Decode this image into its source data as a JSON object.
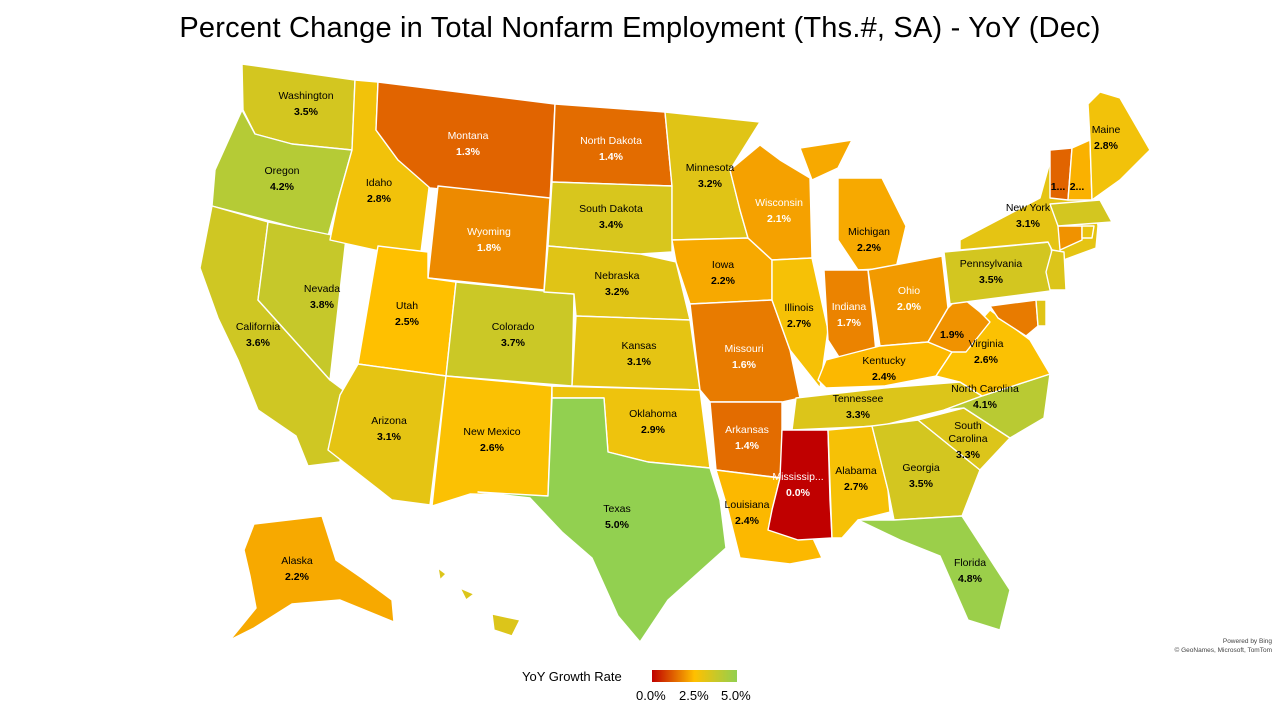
{
  "title": "Percent Change in Total Nonfarm Employment (Ths.#, SA) - YoY (Dec)",
  "credit": [
    "Powered by Bing",
    "© GeoNames, Microsoft, TomTom"
  ],
  "legend": {
    "title": "YoY Growth Rate",
    "ticks": [
      "0.0%",
      "2.5%",
      "5.0%"
    ],
    "color_low": "#c00000",
    "color_mid": "#ffc000",
    "color_high": "#92d050"
  },
  "states": [
    {
      "id": "WA",
      "name": "Washington",
      "value": "3.5%",
      "v": 3.5
    },
    {
      "id": "OR",
      "name": "Oregon",
      "value": "4.2%",
      "v": 4.2
    },
    {
      "id": "CA",
      "name": "California",
      "value": "3.6%",
      "v": 3.6
    },
    {
      "id": "NV",
      "name": "Nevada",
      "value": "3.8%",
      "v": 3.8
    },
    {
      "id": "ID",
      "name": "Idaho",
      "value": "2.8%",
      "v": 2.8
    },
    {
      "id": "MT",
      "name": "Montana",
      "value": "1.3%",
      "v": 1.3
    },
    {
      "id": "WY",
      "name": "Wyoming",
      "value": "1.8%",
      "v": 1.8
    },
    {
      "id": "UT",
      "name": "Utah",
      "value": "2.5%",
      "v": 2.5
    },
    {
      "id": "AZ",
      "name": "Arizona",
      "value": "3.1%",
      "v": 3.1
    },
    {
      "id": "CO",
      "name": "Colorado",
      "value": "3.7%",
      "v": 3.7
    },
    {
      "id": "NM",
      "name": "New Mexico",
      "value": "2.6%",
      "v": 2.6
    },
    {
      "id": "ND",
      "name": "North Dakota",
      "value": "1.4%",
      "v": 1.4
    },
    {
      "id": "SD",
      "name": "South Dakota",
      "value": "3.4%",
      "v": 3.4
    },
    {
      "id": "NE",
      "name": "Nebraska",
      "value": "3.2%",
      "v": 3.2
    },
    {
      "id": "KS",
      "name": "Kansas",
      "value": "3.1%",
      "v": 3.1
    },
    {
      "id": "OK",
      "name": "Oklahoma",
      "value": "2.9%",
      "v": 2.9
    },
    {
      "id": "TX",
      "name": "Texas",
      "value": "5.0%",
      "v": 5.0
    },
    {
      "id": "MN",
      "name": "Minnesota",
      "value": "3.2%",
      "v": 3.2
    },
    {
      "id": "IA",
      "name": "Iowa",
      "value": "2.2%",
      "v": 2.2
    },
    {
      "id": "MO",
      "name": "Missouri",
      "value": "1.6%",
      "v": 1.6
    },
    {
      "id": "AR",
      "name": "Arkansas",
      "value": "1.4%",
      "v": 1.4
    },
    {
      "id": "LA",
      "name": "Louisiana",
      "value": "2.4%",
      "v": 2.4
    },
    {
      "id": "WI",
      "name": "Wisconsin",
      "value": "2.1%",
      "v": 2.1
    },
    {
      "id": "IL",
      "name": "Illinois",
      "value": "2.7%",
      "v": 2.7
    },
    {
      "id": "MI",
      "name": "Michigan",
      "value": "2.2%",
      "v": 2.2
    },
    {
      "id": "IN",
      "name": "Indiana",
      "value": "1.7%",
      "v": 1.7
    },
    {
      "id": "OH",
      "name": "Ohio",
      "value": "2.0%",
      "v": 2.0
    },
    {
      "id": "KY",
      "name": "Kentucky",
      "value": "2.4%",
      "v": 2.4
    },
    {
      "id": "TN",
      "name": "Tennessee",
      "value": "3.3%",
      "v": 3.3
    },
    {
      "id": "MS",
      "name": "Mississip...",
      "value": "0.0%",
      "v": 0.0
    },
    {
      "id": "AL",
      "name": "Alabama",
      "value": "2.7%",
      "v": 2.7
    },
    {
      "id": "GA",
      "name": "Georgia",
      "value": "3.5%",
      "v": 3.5
    },
    {
      "id": "FL",
      "name": "Florida",
      "value": "4.8%",
      "v": 4.8
    },
    {
      "id": "SC",
      "name": "South Carolina",
      "value": "3.3%",
      "v": 3.3
    },
    {
      "id": "NC",
      "name": "North Carolina",
      "value": "4.1%",
      "v": 4.1
    },
    {
      "id": "VA",
      "name": "Virginia",
      "value": "2.6%",
      "v": 2.6
    },
    {
      "id": "WV",
      "name": "",
      "value": "1.9%",
      "v": 1.9
    },
    {
      "id": "PA",
      "name": "Pennsylvania",
      "value": "3.5%",
      "v": 3.5
    },
    {
      "id": "NY",
      "name": "New York",
      "value": "3.1%",
      "v": 3.1
    },
    {
      "id": "VT",
      "name": "",
      "value": "1...",
      "v": 1.3
    },
    {
      "id": "NH",
      "name": "",
      "value": "2...",
      "v": 2.3
    },
    {
      "id": "ME",
      "name": "Maine",
      "value": "2.8%",
      "v": 2.8
    },
    {
      "id": "AK",
      "name": "Alaska",
      "value": "2.2%",
      "v": 2.2
    },
    {
      "id": "HI",
      "name": "",
      "value": "",
      "v": 3.3
    },
    {
      "id": "MD",
      "name": "",
      "value": "",
      "v": 1.6
    },
    {
      "id": "DE",
      "name": "",
      "value": "",
      "v": 3.2
    },
    {
      "id": "NJ",
      "name": "",
      "value": "",
      "v": 3.3
    },
    {
      "id": "CT",
      "name": "",
      "value": "",
      "v": 1.9
    },
    {
      "id": "RI",
      "name": "",
      "value": "",
      "v": 3.0
    },
    {
      "id": "MA",
      "name": "",
      "value": "",
      "v": 3.5
    }
  ]
}
